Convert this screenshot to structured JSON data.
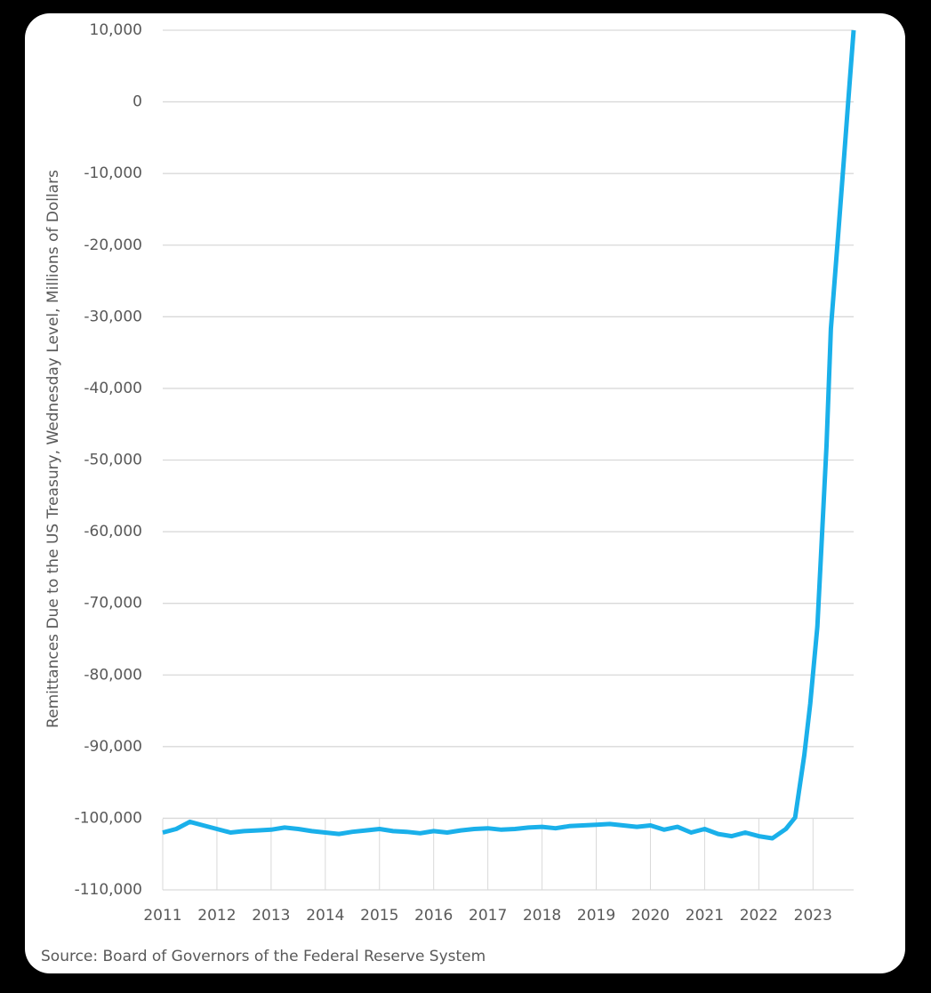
{
  "chart_data": {
    "type": "line",
    "y_label": "Remittances Due to the US Treasury, Wednesday Level, Millions of Dollars",
    "source": "Source: Board of Governors of the Federal Reserve System",
    "xlim": [
      2011,
      2023.75
    ],
    "xticks": [
      2011,
      2012,
      2013,
      2014,
      2015,
      2016,
      2017,
      2018,
      2019,
      2020,
      2021,
      2022,
      2023
    ],
    "ylim": [
      -110000,
      10000
    ],
    "yticks": [
      {
        "value": -110000,
        "label": "-110,000"
      },
      {
        "value": -100000,
        "label": "-100,000"
      },
      {
        "value": -90000,
        "label": "-90,000"
      },
      {
        "value": -80000,
        "label": "-80,000"
      },
      {
        "value": -70000,
        "label": "-70,000"
      },
      {
        "value": -60000,
        "label": "-60,000"
      },
      {
        "value": -50000,
        "label": "-50,000"
      },
      {
        "value": -40000,
        "label": "-40,000"
      },
      {
        "value": -30000,
        "label": "-30,000"
      },
      {
        "value": -20000,
        "label": "-20,000"
      },
      {
        "value": -10000,
        "label": "-10,000"
      },
      0,
      {
        "value": 10000,
        "label": "10,000"
      }
    ],
    "grid": true,
    "color": "#1ab0ea",
    "x": [
      2011.0,
      2011.25,
      2011.5,
      2011.75,
      2012.0,
      2012.25,
      2012.5,
      2012.75,
      2013.0,
      2013.25,
      2013.5,
      2013.75,
      2014.0,
      2014.25,
      2014.5,
      2014.75,
      2015.0,
      2015.25,
      2015.5,
      2015.75,
      2016.0,
      2016.25,
      2016.5,
      2016.75,
      2017.0,
      2017.25,
      2017.5,
      2017.75,
      2018.0,
      2018.25,
      2018.5,
      2018.75,
      2019.0,
      2019.25,
      2019.5,
      2019.75,
      2020.0,
      2020.25,
      2020.5,
      2020.75,
      2021.0,
      2021.25,
      2021.5,
      2021.75,
      2022.0,
      2022.25,
      2022.5,
      2022.67,
      2022.84,
      2022.95,
      2023.08,
      2023.15,
      2023.25,
      2023.33,
      2023.45,
      2023.57,
      2023.68,
      2023.75
    ],
    "values": [
      -102000,
      -101500,
      -100500,
      -101000,
      -101500,
      -102000,
      -101800,
      -101700,
      -101600,
      -101300,
      -101500,
      -101800,
      -102000,
      -102200,
      -101900,
      -101700,
      -101500,
      -101800,
      -101900,
      -102100,
      -101800,
      -102000,
      -101700,
      -101500,
      -101400,
      -101600,
      -101500,
      -101300,
      -101200,
      -101400,
      -101100,
      -101000,
      -100900,
      -100800,
      -101000,
      -101200,
      -101000,
      -101600,
      -101200,
      -102000,
      -101500,
      -102200,
      -102500,
      -102000,
      -102500,
      -102800,
      -101500,
      -99900,
      -91200,
      -84000,
      -73250,
      -63000,
      -48000,
      -31700,
      -20000,
      -8100,
      3000,
      10000
    ]
  }
}
